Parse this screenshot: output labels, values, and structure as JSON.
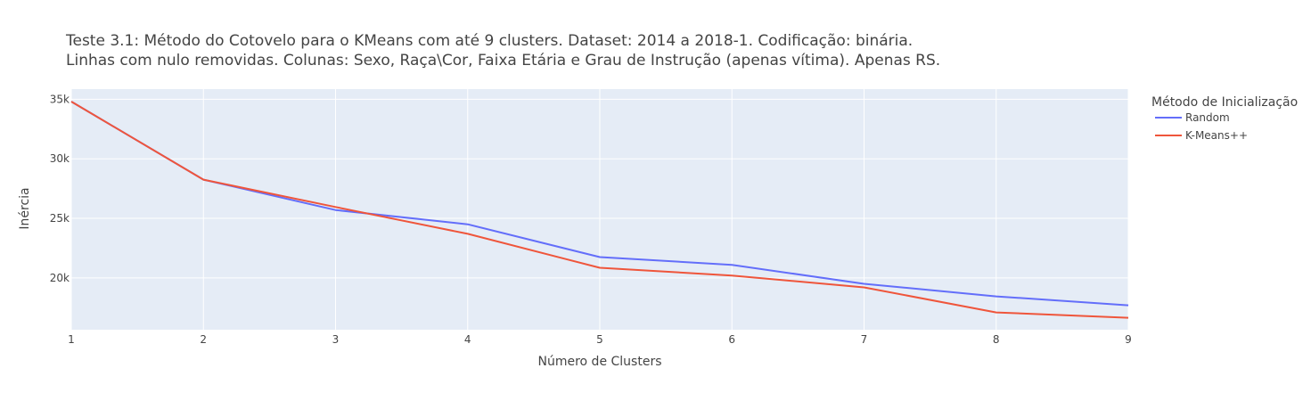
{
  "chart_data": {
    "type": "line",
    "title_lines": [
      "Teste 3.1: Método do Cotovelo para o KMeans com até 9 clusters. Dataset: 2014 a 2018-1. Codificação: binária.",
      "Linhas com nulo removidas. Colunas: Sexo, Raça\\Cor, Faixa Etária e Grau de Instrução (apenas vítima). Apenas RS."
    ],
    "xlabel": "Número de Clusters",
    "ylabel": "Inércia",
    "x": [
      1,
      2,
      3,
      4,
      5,
      6,
      7,
      8,
      9
    ],
    "x_tick_labels": [
      "1",
      "2",
      "3",
      "4",
      "5",
      "6",
      "7",
      "8",
      "9"
    ],
    "xlim": [
      1,
      9
    ],
    "ylim": [
      15650,
      35850
    ],
    "y_ticks": [
      20000,
      25000,
      30000,
      35000
    ],
    "y_tick_labels": [
      "20k",
      "25k",
      "30k",
      "35k"
    ],
    "grid": true,
    "legend_title": "Método de Inicialização",
    "legend_position": "right",
    "series": [
      {
        "name": "Random",
        "color": "#636efa",
        "values": [
          34800,
          28250,
          25700,
          24500,
          21750,
          21100,
          19500,
          18450,
          17700
        ]
      },
      {
        "name": "K-Means++",
        "color": "#ef553b",
        "values": [
          34800,
          28250,
          25950,
          23700,
          20850,
          20200,
          19200,
          17100,
          16650
        ]
      }
    ],
    "plot_background": "#e5ecf6",
    "grid_color": "#ffffff"
  }
}
